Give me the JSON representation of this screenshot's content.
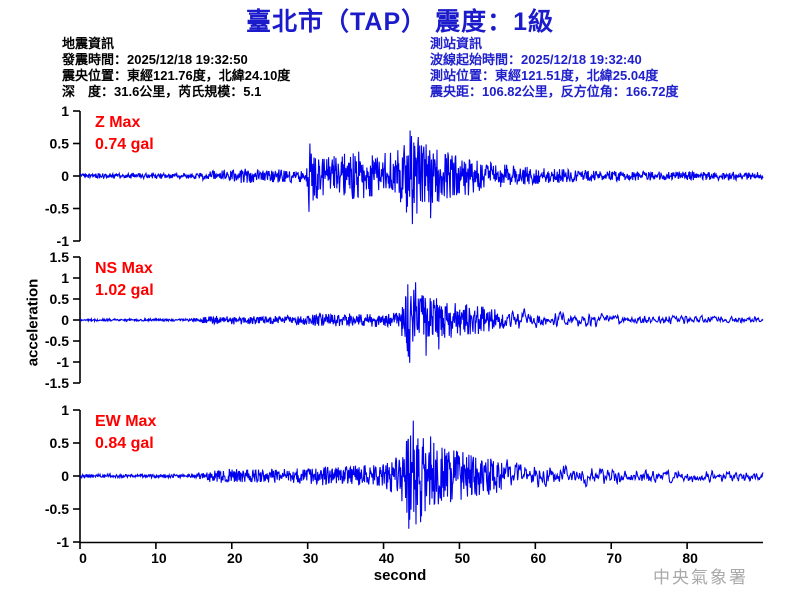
{
  "header": {
    "title": "臺北市（TAP） 震度：1級",
    "station_code": "TAP",
    "intensity": "1級"
  },
  "eq_info": {
    "lines": [
      "地震資訊",
      "發震時間：2025/12/18 19:32:50",
      "震央位置：東經121.76度，北緯24.10度",
      "深　度：31.6公里，芮氏規模：5.1"
    ]
  },
  "station_info": {
    "lines": [
      "測站資訊",
      "波線起始時間：2025/12/18 19:32:40",
      "測站位置：東經121.51度，北緯25.04度",
      "震央距：106.82公里，反方位角：166.72度"
    ]
  },
  "footer": {
    "agency": "中央氣象署"
  },
  "colors": {
    "title_blue": "#1b1bcc",
    "station_info_blue": "#2121cc",
    "trace_blue": "#0000ee",
    "max_label_red": "#ff0000",
    "axis_black": "#000000",
    "footer_gray": "#a9a9a9"
  },
  "chart_data": {
    "type": "line",
    "title": "臺北市（TAP） 震度：1級",
    "xlabel": "second",
    "ylabel": "acceleration",
    "x_range": [
      0,
      90
    ],
    "x_ticks": [
      0,
      10,
      20,
      30,
      40,
      50,
      60,
      70,
      80
    ],
    "trace_color": "#0000ee",
    "grid": false,
    "panels": [
      {
        "channel": "Z",
        "max_label": "Z Max",
        "max_text": "0.74 gal",
        "max_gal": 0.74,
        "ylim": [
          -1,
          1
        ],
        "y_ticks": [
          1,
          0.5,
          0,
          -0.5,
          -1
        ],
        "envelope_t": [
          0,
          15,
          17,
          20,
          22,
          24,
          27,
          28.5,
          29.8,
          30.1,
          31,
          33,
          35,
          37,
          39,
          41,
          42.5,
          43.2,
          43.8,
          44.5,
          46,
          48,
          50,
          53,
          56,
          60,
          65,
          70,
          78,
          90
        ],
        "envelope_gal": [
          0.04,
          0.045,
          0.08,
          0.09,
          0.12,
          0.1,
          0.11,
          0.09,
          0.1,
          0.5,
          0.38,
          0.3,
          0.35,
          0.4,
          0.33,
          0.38,
          0.45,
          0.6,
          0.74,
          0.6,
          0.5,
          0.42,
          0.33,
          0.25,
          0.18,
          0.13,
          0.1,
          0.08,
          0.07,
          0.06
        ],
        "spikes": [
          {
            "t": 30.15,
            "gal": -0.55
          },
          {
            "t": 30.3,
            "gal": 0.5
          },
          {
            "t": 43.5,
            "gal": 0.7
          },
          {
            "t": 43.8,
            "gal": -0.74
          },
          {
            "t": 44.6,
            "gal": 0.6
          },
          {
            "t": 46.2,
            "gal": -0.65
          }
        ]
      },
      {
        "channel": "NS",
        "max_label": "NS Max",
        "max_text": "1.02 gal",
        "max_gal": 1.02,
        "ylim": [
          -1.5,
          1.5
        ],
        "y_ticks": [
          1.5,
          1,
          0.5,
          0,
          -0.5,
          -1,
          -1.5
        ],
        "envelope_t": [
          0,
          15,
          17,
          19,
          24,
          28,
          30,
          34,
          38,
          40,
          42,
          42.8,
          43.4,
          44,
          45,
          46.5,
          48,
          50,
          53,
          56,
          60,
          65,
          70,
          76,
          82,
          90
        ],
        "envelope_gal": [
          0.025,
          0.03,
          0.09,
          0.11,
          0.1,
          0.11,
          0.13,
          0.15,
          0.17,
          0.18,
          0.22,
          0.55,
          1.02,
          0.85,
          0.7,
          0.55,
          0.48,
          0.4,
          0.33,
          0.27,
          0.22,
          0.17,
          0.14,
          0.12,
          0.11,
          0.09
        ],
        "spikes": [
          {
            "t": 43.2,
            "gal": 0.85
          },
          {
            "t": 43.45,
            "gal": -1.02
          },
          {
            "t": 44.2,
            "gal": 0.9
          },
          {
            "t": 45.6,
            "gal": -0.85
          },
          {
            "t": 47.3,
            "gal": -0.7
          }
        ]
      },
      {
        "channel": "EW",
        "max_label": "EW Max",
        "max_text": "0.84 gal",
        "max_gal": 0.84,
        "ylim": [
          -1,
          1
        ],
        "y_ticks": [
          1,
          0.5,
          0,
          -0.5,
          -1
        ],
        "envelope_t": [
          0,
          15,
          17,
          19,
          24,
          28,
          30,
          34,
          38,
          40,
          42,
          43,
          43.9,
          44.8,
          46,
          47.5,
          49,
          51,
          53,
          56,
          60,
          65,
          70,
          76,
          82,
          90
        ],
        "envelope_gal": [
          0.025,
          0.03,
          0.09,
          0.11,
          0.1,
          0.11,
          0.13,
          0.15,
          0.17,
          0.2,
          0.3,
          0.55,
          0.84,
          0.65,
          0.55,
          0.45,
          0.4,
          0.35,
          0.3,
          0.25,
          0.2,
          0.16,
          0.13,
          0.11,
          0.1,
          0.09
        ],
        "spikes": [
          {
            "t": 43.3,
            "gal": -0.8
          },
          {
            "t": 43.9,
            "gal": 0.84
          },
          {
            "t": 44.9,
            "gal": -0.7
          },
          {
            "t": 46.2,
            "gal": 0.6
          }
        ]
      }
    ]
  }
}
